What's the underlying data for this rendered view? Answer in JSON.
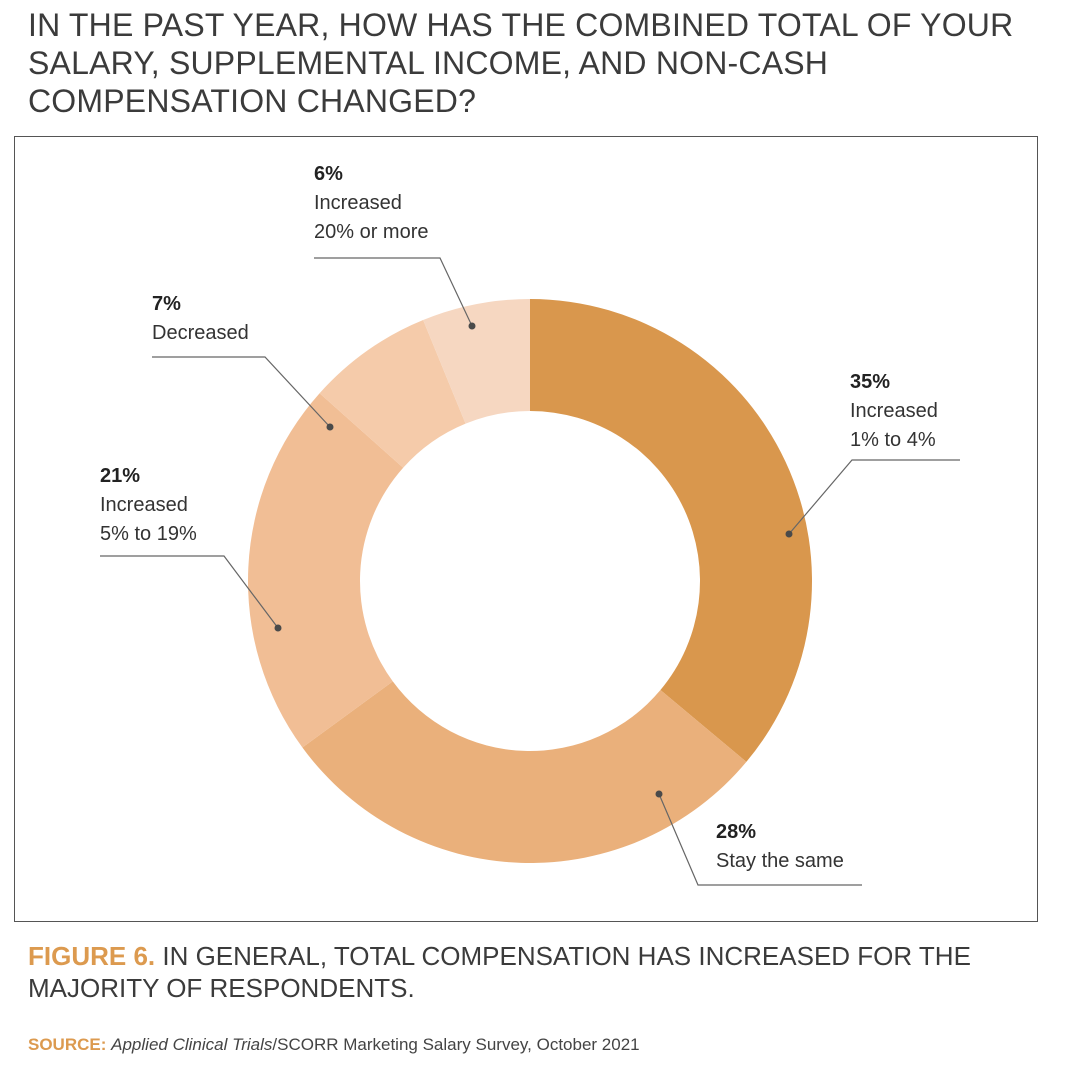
{
  "title": "IN THE PAST YEAR, HOW HAS THE COMBINED TOTAL OF YOUR SALARY, SUPPLEMENTAL INCOME, AND NON-CASH COMPENSATION CHANGED?",
  "caption": {
    "figure_label": "FIGURE 6.",
    "text": " IN GENERAL, TOTAL COMPENSATION HAS INCREASED FOR THE MAJORITY OF RESPONDENTS."
  },
  "source": {
    "label": "SOURCE:",
    "publication": "Applied Clinical Trials",
    "rest": "/SCORR Marketing Salary Survey, October 2021"
  },
  "chart_data": {
    "type": "pie",
    "donut": true,
    "slices": [
      {
        "value": 35,
        "pct_label": "35%",
        "lines": [
          "Increased",
          "1% to 4%"
        ],
        "color": "#d9974d"
      },
      {
        "value": 28,
        "pct_label": "28%",
        "lines": [
          "Stay the same"
        ],
        "color": "#eab07b"
      },
      {
        "value": 21,
        "pct_label": "21%",
        "lines": [
          "Increased",
          "5% to 19%"
        ],
        "color": "#f1be95"
      },
      {
        "value": 7,
        "pct_label": "7%",
        "lines": [
          "Decreased"
        ],
        "color": "#f5cbaa"
      },
      {
        "value": 6,
        "pct_label": "6%",
        "lines": [
          "Increased",
          "20% or more"
        ],
        "color": "#f6d7c1"
      }
    ]
  }
}
